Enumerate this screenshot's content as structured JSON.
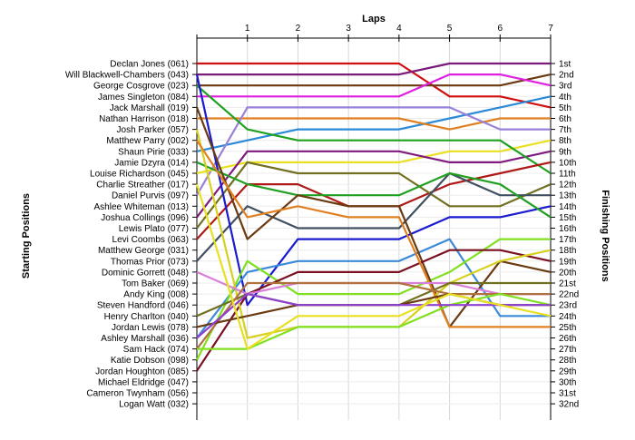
{
  "chart_data": {
    "type": "line",
    "title": "Laps",
    "ylabel_left": "Starting Positions",
    "ylabel_right": "Finishing Positions",
    "x": [
      0,
      1,
      2,
      3,
      4,
      5,
      6,
      7
    ],
    "x_tick_labels": [
      "",
      "1",
      "2",
      "3",
      "4",
      "5",
      "6",
      "7"
    ],
    "grid": true,
    "starting_labels": [
      "Declan Jones (061)",
      "Will Blackwell-Chambers (043)",
      "George Cosgrove (023)",
      "James Singleton (084)",
      "Jack Marshall (019)",
      "Nathan Harrison (018)",
      "Josh Parker (057)",
      "Matthew Parry (002)",
      "Shaun Pirie (033)",
      "Jamie Dzyra (014)",
      "Louise Richardson (045)",
      "Charlie Streather (017)",
      "Daniel Purvis (097)",
      "Ashlee Whiteman (013)",
      "Joshua Collings (096)",
      "Lewis Plato (077)",
      "Levi Coombs (063)",
      "Matthew George (031)",
      "Thomas Prior (073)",
      "Dominic Gorrett (048)",
      "Tom Baker (069)",
      "Andy King (008)",
      "Steven Handford (046)",
      "Henry Charlton (040)",
      "Jordan Lewis (078)",
      "Ashley Marshall (036)",
      "Sam Hack (074)",
      "Katie Dobson (098)",
      "Jordan Houghton (085)",
      "Michael Eldridge (047)",
      "Cameron Twynham (056)",
      "Logan Watt (032)"
    ],
    "finishing_labels": [
      "1st",
      "2nd",
      "3rd",
      "4th",
      "5th",
      "6th",
      "7th",
      "8th",
      "9th",
      "10th",
      "11th",
      "12th",
      "13th",
      "14th",
      "15th",
      "16th",
      "17th",
      "18th",
      "19th",
      "20th",
      "21st",
      "22nd",
      "23rd",
      "24th",
      "25th",
      "26th",
      "27th",
      "28th",
      "29th",
      "30th",
      "31st",
      "32nd"
    ],
    "series": [
      {
        "color": "#d01010",
        "values": [
          1,
          1,
          1,
          1,
          1,
          4,
          4,
          5
        ]
      },
      {
        "color": "#7a1a7a",
        "values": [
          2,
          2,
          2,
          2,
          2,
          1,
          1,
          1
        ]
      },
      {
        "color": "#6b3a10",
        "values": [
          3,
          3,
          3,
          3,
          3,
          3,
          3,
          2
        ]
      },
      {
        "color": "#e020e0",
        "values": [
          4,
          4,
          4,
          4,
          4,
          2,
          2,
          3
        ]
      },
      {
        "color": "#2a8ad8",
        "values": [
          9,
          8,
          7,
          7,
          7,
          6,
          5,
          4
        ]
      },
      {
        "color": "#e08020",
        "values": [
          6,
          6,
          6,
          6,
          6,
          7,
          6,
          6
        ]
      },
      {
        "color": "#9a80d8",
        "values": [
          13,
          5,
          5,
          5,
          5,
          5,
          7,
          7
        ]
      },
      {
        "color": "#e8e020",
        "values": [
          11,
          10,
          10,
          10,
          10,
          9,
          9,
          8
        ]
      },
      {
        "color": "#801a80",
        "values": [
          15,
          9,
          9,
          9,
          9,
          10,
          10,
          9
        ]
      },
      {
        "color": "#20a020",
        "values": [
          3,
          7,
          8,
          8,
          8,
          8,
          8,
          11
        ]
      },
      {
        "color": "#b01818",
        "values": [
          17,
          12,
          12,
          14,
          14,
          12,
          11,
          10
        ]
      },
      {
        "color": "#707020",
        "values": [
          16,
          10,
          11,
          11,
          11,
          14,
          14,
          12
        ]
      },
      {
        "color": "#405060",
        "values": [
          19,
          14,
          16,
          16,
          16,
          11,
          13,
          13
        ]
      },
      {
        "color": "#1a1ad0",
        "values": [
          2,
          23,
          17,
          17,
          17,
          15,
          15,
          14
        ]
      },
      {
        "color": "#20a020",
        "values": [
          10,
          12,
          13,
          13,
          13,
          11,
          12,
          15
        ]
      },
      {
        "color": "#3a8ad8",
        "values": [
          26,
          20,
          19,
          19,
          19,
          17,
          24,
          24
        ]
      },
      {
        "color": "#80e020",
        "values": [
          28,
          19,
          22,
          22,
          22,
          20,
          17,
          17
        ]
      },
      {
        "color": "#6a3a10",
        "values": [
          5,
          17,
          13,
          14,
          14,
          25,
          19,
          20
        ]
      },
      {
        "color": "#7a1020",
        "values": [
          29,
          22,
          20,
          20,
          20,
          18,
          18,
          19
        ]
      },
      {
        "color": "#d8d020",
        "values": [
          7,
          26,
          25,
          25,
          25,
          21,
          19,
          18
        ]
      },
      {
        "color": "#e08020",
        "values": [
          8,
          15,
          14,
          15,
          15,
          25,
          25,
          25
        ]
      },
      {
        "color": "#d880d8",
        "values": [
          20,
          22,
          21,
          21,
          21,
          21,
          22,
          22
        ]
      },
      {
        "color": "#707020",
        "values": [
          24,
          22,
          23,
          23,
          23,
          21,
          21,
          21
        ]
      },
      {
        "color": "#b07040",
        "values": [
          27,
          21,
          21,
          21,
          21,
          22,
          22,
          22
        ]
      },
      {
        "color": "#6a3a10",
        "values": [
          25,
          24,
          23,
          23,
          23,
          22,
          23,
          23
        ]
      },
      {
        "color": "#80e020",
        "values": [
          27,
          27,
          25,
          25,
          25,
          23,
          22,
          23
        ]
      },
      {
        "color": "#9040d0",
        "values": [
          26,
          22,
          23,
          23,
          23,
          23,
          23,
          23
        ]
      },
      {
        "color": "#e8e020",
        "values": [
          12,
          27,
          24,
          24,
          24,
          22,
          23,
          24
        ]
      }
    ]
  }
}
